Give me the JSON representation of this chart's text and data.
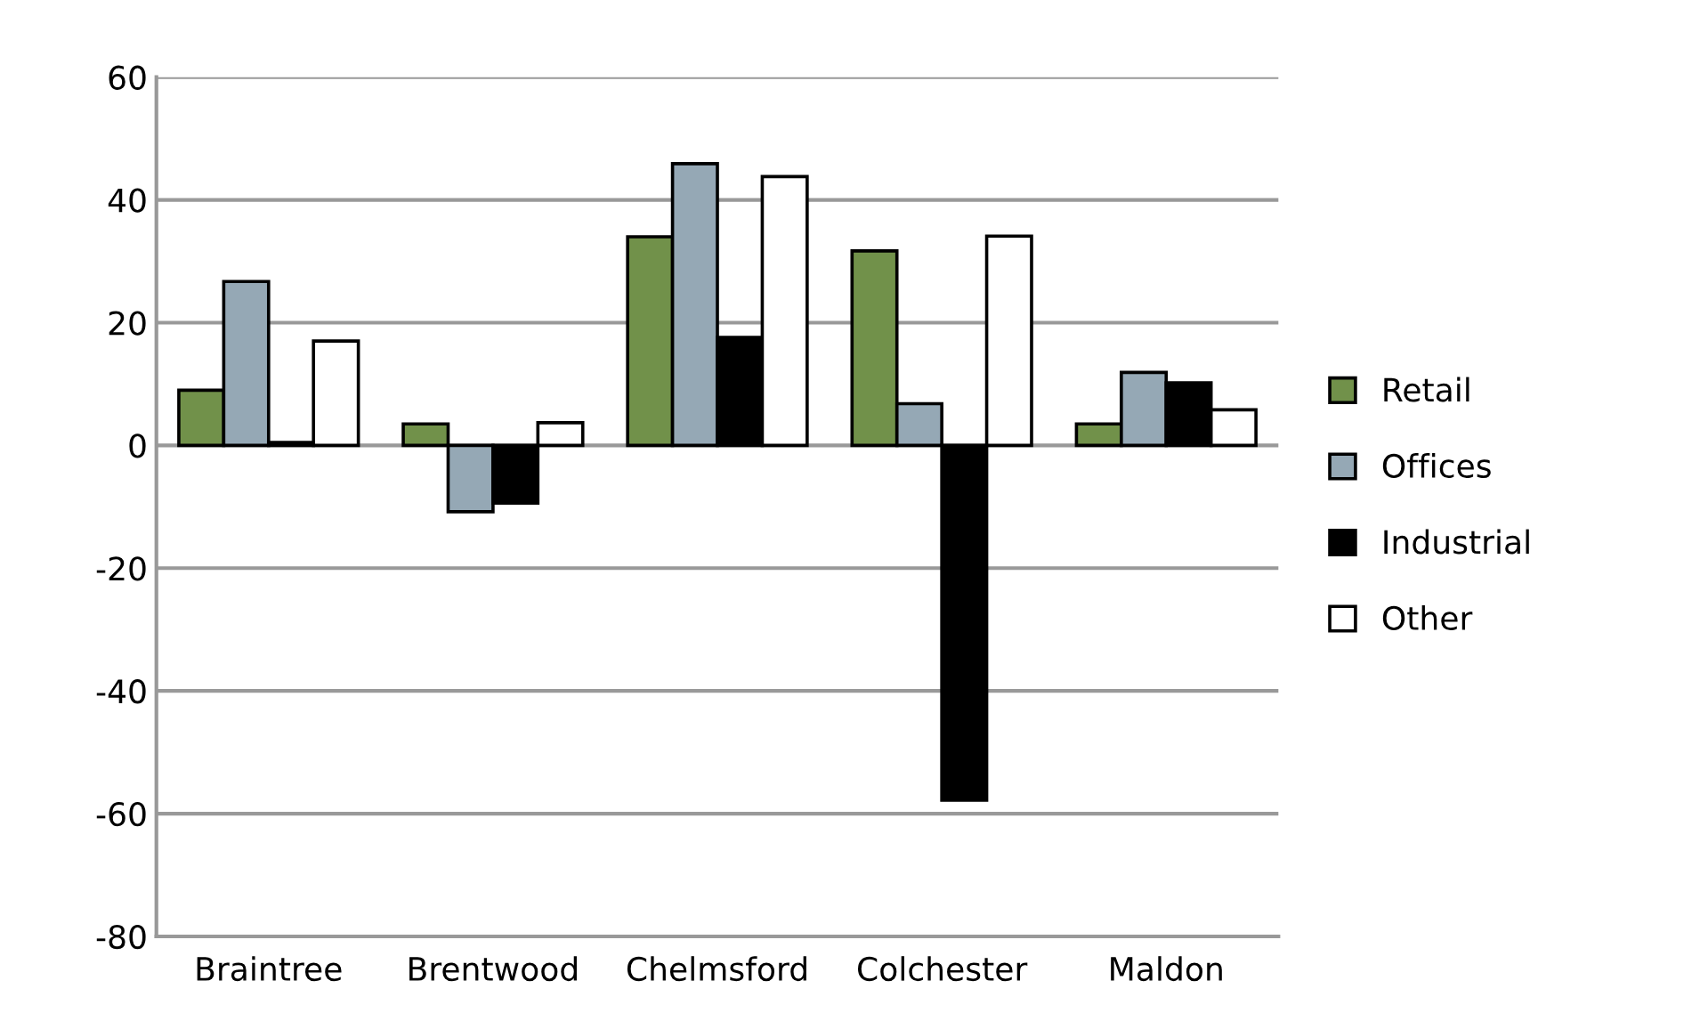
{
  "chart_data": {
    "type": "bar",
    "categories": [
      "Braintree",
      "Brentwood",
      "Chelmsford",
      "Colchester",
      "Maldon"
    ],
    "series": [
      {
        "name": "Retail",
        "color": "#71914a",
        "values": [
          9,
          3.5,
          34,
          31.7,
          3.5
        ]
      },
      {
        "name": "Offices",
        "color": "#95a8b5",
        "values": [
          26.7,
          -10.8,
          45.9,
          6.8,
          11.9
        ]
      },
      {
        "name": "Industrial",
        "color": "#000000",
        "values": [
          0.5,
          -9.4,
          17.6,
          -57.8,
          10.2
        ]
      },
      {
        "name": "Other",
        "color": "#ffffff",
        "values": [
          17,
          3.7,
          43.8,
          34.1,
          5.8
        ]
      }
    ],
    "ylim": [
      -80,
      60
    ],
    "yticks": [
      -80,
      -60,
      -40,
      -20,
      0,
      20,
      40,
      60
    ],
    "grid": "y",
    "legend": "right"
  }
}
